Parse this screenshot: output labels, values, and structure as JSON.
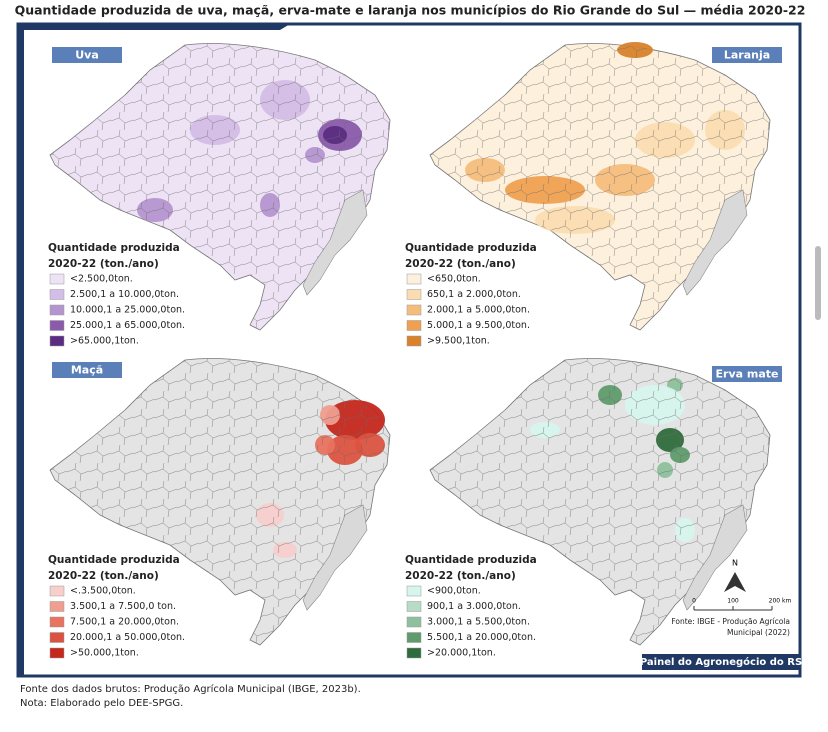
{
  "title": "Quantidade produzida de uva, maçã, erva-mate e laranja nos municípios do Rio Grande do Sul — média 2020-22",
  "panels": [
    {
      "label": "Uva",
      "legend_title": [
        "Quantidade produzida",
        "2020-22 (ton./ano)"
      ],
      "legend": [
        {
          "label": "<2.500,0ton.",
          "color": "#ede3f5"
        },
        {
          "label": "2.500,1 a 10.000,0ton.",
          "color": "#d4bde6"
        },
        {
          "label": "10.000,1 a 25.000,0ton.",
          "color": "#b595cf"
        },
        {
          "label": "25.000,1 a 65.000,0ton.",
          "color": "#8a5aab"
        },
        {
          "label": ">65.000,1ton.",
          "color": "#5b2d82"
        }
      ]
    },
    {
      "label": "Laranja",
      "legend_title": [
        "Quantidade produzida",
        "2020-22 (ton./ano)"
      ],
      "legend": [
        {
          "label": "<650,0ton.",
          "color": "#fdf0dc"
        },
        {
          "label": "650,1 a 2.000,0ton.",
          "color": "#fbdcb0"
        },
        {
          "label": "2.000,1 a 5.000,0ton.",
          "color": "#f5bd7c"
        },
        {
          "label": "5.000,1 a 9.500,0ton.",
          "color": "#efa050"
        },
        {
          "label": ">9.500,1ton.",
          "color": "#d9822b"
        }
      ]
    },
    {
      "label": "Maçã",
      "legend_title": [
        "Quantidade produzida",
        "2020-22 (ton./ano)"
      ],
      "legend": [
        {
          "label": "<.3.500,0ton.",
          "color": "#f7cfcc"
        },
        {
          "label": "3.500,1 a 7.500,0 ton.",
          "color": "#ef9e8f"
        },
        {
          "label": "7.500,1 a 20.000,0ton.",
          "color": "#e8735f"
        },
        {
          "label": "20.000,1 a 50.000,0ton.",
          "color": "#db5340"
        },
        {
          "label": ">50.000,1ton.",
          "color": "#c4281c"
        }
      ]
    },
    {
      "label": "Erva mate",
      "legend_title": [
        "Quantidade produzida",
        "2020-22 (ton./ano)"
      ],
      "legend": [
        {
          "label": "<900,0ton.",
          "color": "#d6f5ec"
        },
        {
          "label": "900,1 a 3.000,0ton.",
          "color": "#b7dbc4"
        },
        {
          "label": "3.000,1 a 5.500,0ton.",
          "color": "#8ec09d"
        },
        {
          "label": "5.500,1 a 20.000,0ton.",
          "color": "#5f9b6c"
        },
        {
          "label": ">20.000,1ton.",
          "color": "#2f6b3c"
        }
      ]
    }
  ],
  "north_label": "N",
  "scale_labels": [
    "0",
    "100",
    "200 km"
  ],
  "map_source": [
    "Fonte: IBGE - Produção Agrícola",
    "Municipal (2022)"
  ],
  "brand": "Painel do Agronegócio do RS",
  "footer": [
    "Fonte dos dados brutos: Produção Agrícola Municipal (IBGE, 2023b).",
    "Nota: Elaborado pelo DEE-SPGG."
  ]
}
